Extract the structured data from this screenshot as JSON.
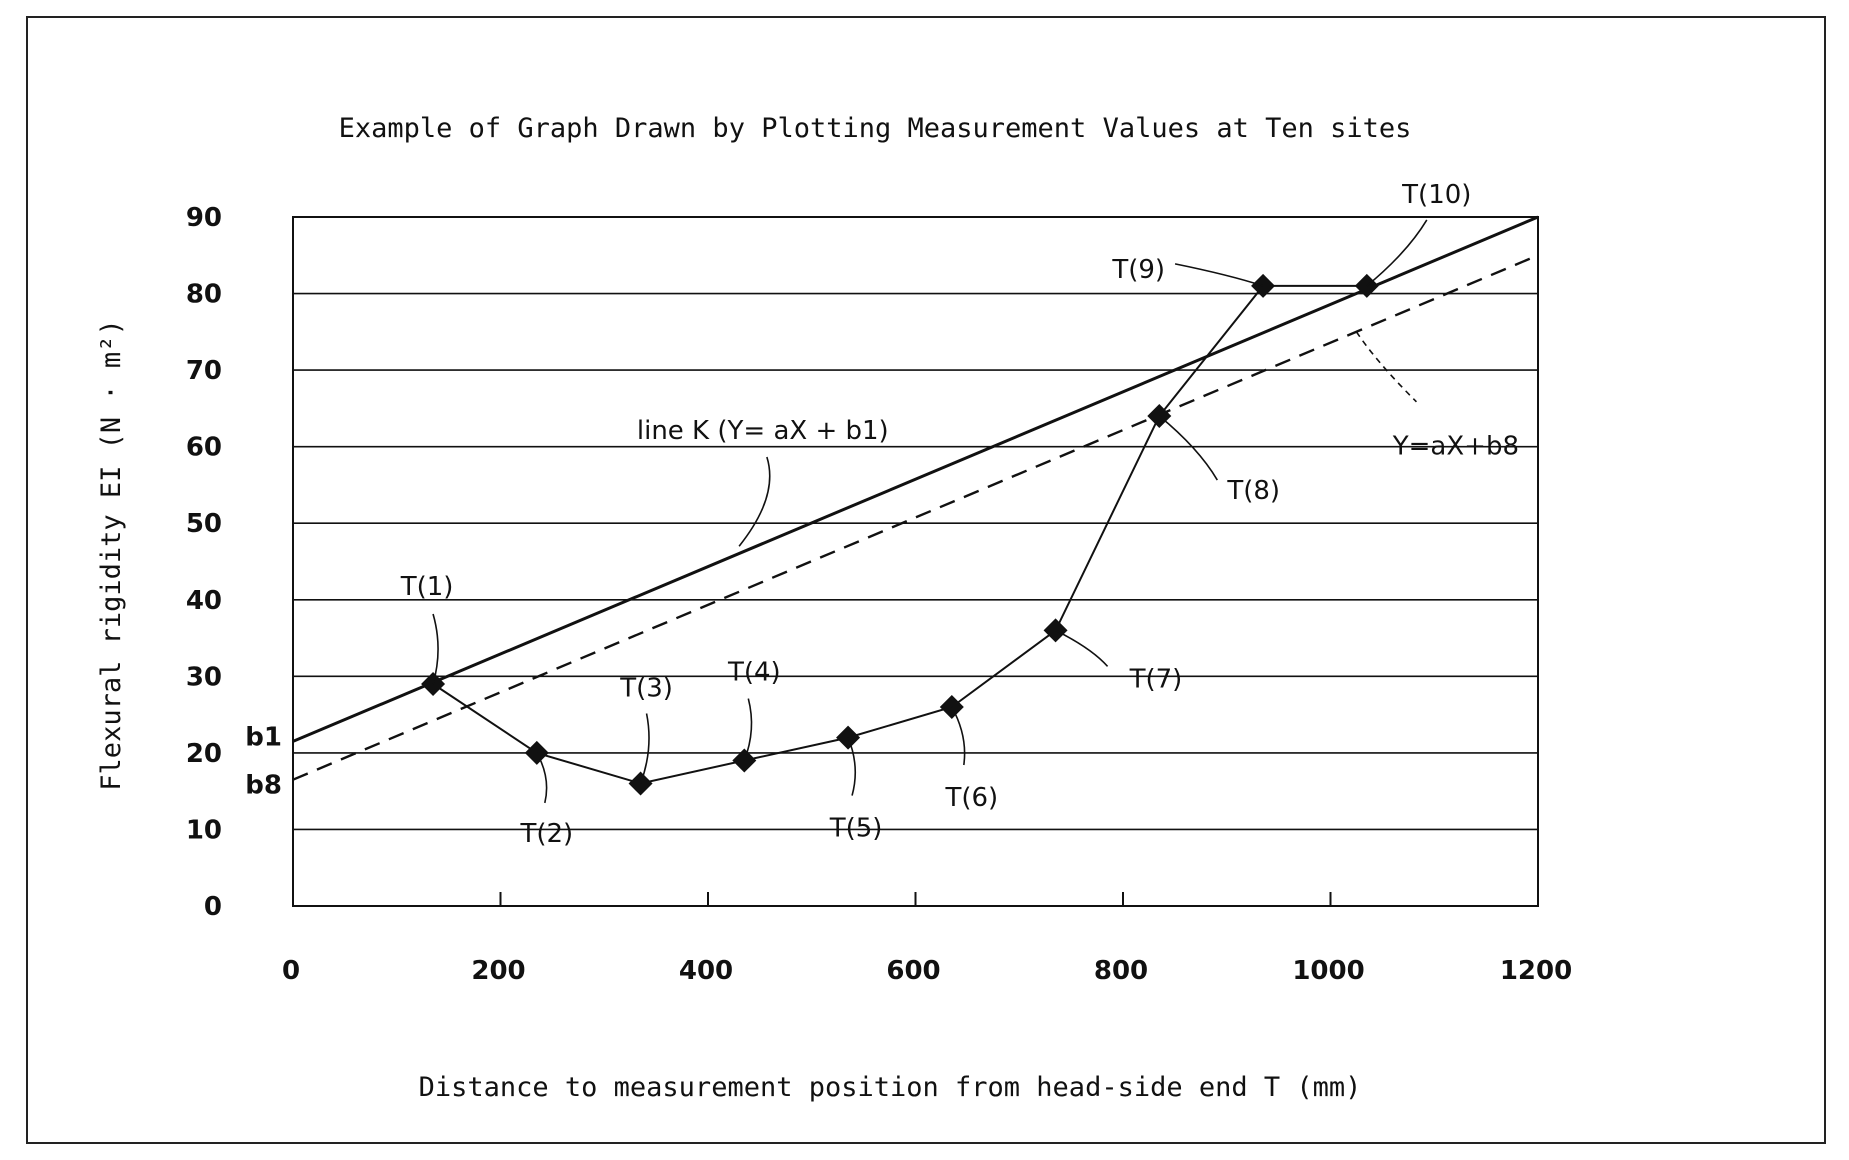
{
  "chart_data": {
    "type": "line",
    "title": "Example of Graph Drawn by Plotting Measurement Values at Ten sites",
    "xlabel": "Distance to measurement position from head-side end T (mm)",
    "ylabel": "Flexural rigidity EI (N · m²)",
    "xlim": [
      0,
      1200
    ],
    "ylim": [
      0,
      90
    ],
    "xticks": [
      0,
      200,
      400,
      600,
      800,
      1000,
      1200
    ],
    "yticks": [
      0,
      10,
      20,
      30,
      40,
      50,
      60,
      70,
      80,
      90
    ],
    "grid": "horizontal",
    "series": [
      {
        "style": "marker-line",
        "points": [
          {
            "label": "T(1)",
            "x": 135,
            "y": 29
          },
          {
            "label": "T(2)",
            "x": 235,
            "y": 20
          },
          {
            "label": "T(3)",
            "x": 335,
            "y": 16
          },
          {
            "label": "T(4)",
            "x": 435,
            "y": 19
          },
          {
            "label": "T(5)",
            "x": 535,
            "y": 22
          },
          {
            "label": "T(6)",
            "x": 635,
            "y": 26
          },
          {
            "label": "T(7)",
            "x": 735,
            "y": 36
          },
          {
            "label": "T(8)",
            "x": 835,
            "y": 64
          },
          {
            "label": "T(9)",
            "x": 935,
            "y": 81
          },
          {
            "label": "T(10)",
            "x": 1035,
            "y": 81
          }
        ]
      }
    ],
    "lines": [
      {
        "name": "line K (Y= aX + b1)",
        "style": "solid",
        "x": [
          0,
          1200
        ],
        "y": [
          21.5,
          90
        ]
      },
      {
        "name": "Y=aX+b8",
        "style": "dashed",
        "x": [
          0,
          1200
        ],
        "y": [
          16.5,
          85
        ]
      }
    ],
    "intercept_labels": [
      {
        "label": "b1",
        "y": 21.5
      },
      {
        "label": "b8",
        "y": 16.5
      }
    ]
  }
}
